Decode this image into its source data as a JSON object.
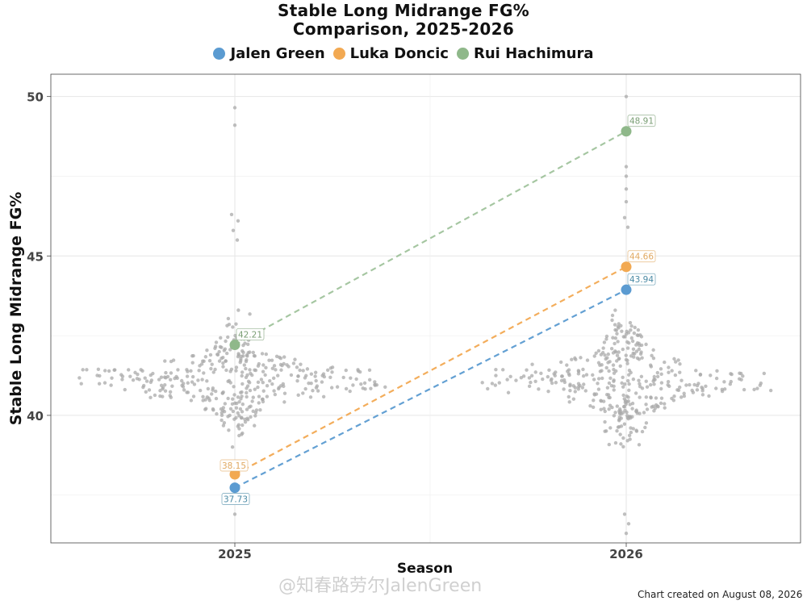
{
  "chart_data": {
    "type": "scatter",
    "title_line1": "Stable Long Midrange FG%",
    "title_line2": "Comparison, 2025-2026",
    "xlabel": "Season",
    "ylabel": "Stable Long Midrange FG%",
    "categories": [
      "2025",
      "2026"
    ],
    "ylim": [
      36.0,
      50.7
    ],
    "yticks": [
      40,
      45,
      50
    ],
    "grid": true,
    "legend_position": "top",
    "series": [
      {
        "name": "Jalen Green",
        "color": "#5b9bd1",
        "label_color": "#4a8aa5",
        "values": [
          37.73,
          43.94
        ],
        "labels": [
          "37.73",
          "43.94"
        ]
      },
      {
        "name": "Luka Doncic",
        "color": "#f2a952",
        "label_color": "#e0a860",
        "values": [
          38.15,
          44.66
        ],
        "labels": [
          "38.15",
          "44.66"
        ]
      },
      {
        "name": "Rui Hachimura",
        "color": "#8fb88a",
        "label_color": "#7a9e74",
        "values": [
          42.21,
          48.91
        ],
        "labels": [
          "42.21",
          "48.91"
        ]
      }
    ],
    "background_color": "#a9a9a9"
  },
  "watermark": "@知春路劳尔JalenGreen",
  "footnote": "Chart created on August 08, 2026"
}
